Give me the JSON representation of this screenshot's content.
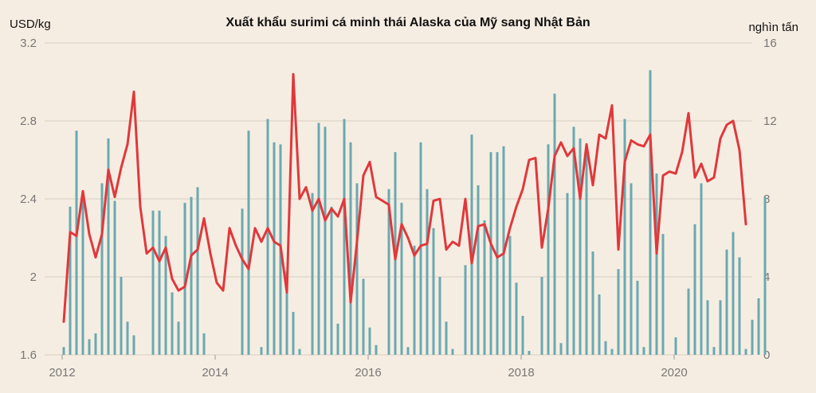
{
  "chart_data": {
    "type": "bar+line",
    "title": "Xuất khẩu surimi cá minh thái Alaska của Mỹ sang Nhật Bản",
    "ylabel_left": "USD/kg",
    "ylabel_right": "nghìn tấn",
    "ylim_left": [
      1.6,
      3.2
    ],
    "ylim_right": [
      0,
      16
    ],
    "yticks_left": [
      "3.2",
      "2.8",
      "2.4",
      "2",
      "1.6"
    ],
    "yticks_right": [
      "16",
      "12",
      "8",
      "4",
      "0"
    ],
    "xticks": [
      "2012",
      "2014",
      "2016",
      "2018",
      "2020"
    ],
    "grid": true,
    "colors": {
      "bars": "#6aa9b0",
      "line": "#e0383c",
      "grid": "#d8cfc3",
      "background": "#f6ede2"
    },
    "x_start": "2012-01",
    "series": [
      {
        "kind": "bar",
        "axis": "right",
        "values": [
          0.4,
          7.6,
          11.5,
          8.1,
          0.8,
          1.1,
          8.8,
          11.1,
          7.9,
          4,
          1.7,
          1,
          0,
          0,
          7.4,
          7.4,
          6.1,
          3.2,
          1.7,
          7.8,
          8.1,
          8.6,
          1.1,
          0,
          0,
          0,
          0,
          0,
          7.5,
          11.5,
          0,
          0.4,
          12.1,
          10.9,
          10.8,
          4.3,
          2.2,
          0.3,
          0,
          8.3,
          11.9,
          11.7,
          7.6,
          1.6,
          12.1,
          10.9,
          8.8,
          3.9,
          1.4,
          0.5,
          0,
          8.5,
          10.4,
          7.8,
          0.4,
          5.6,
          10.9,
          8.5,
          6.5,
          4,
          1.7,
          0.3,
          0,
          4.6,
          11.3,
          8.7,
          6.9,
          10.4,
          10.4,
          10.7,
          6.1,
          3.7,
          2,
          0.2,
          0,
          4,
          10.8,
          13.4,
          0.6,
          8.3,
          11.7,
          11.1,
          10.7,
          5.3,
          3.1,
          0.7,
          0.3,
          4.4,
          12.1,
          8.8,
          3.8,
          0.4,
          14.6,
          9.3,
          6.2,
          0,
          0.9,
          0,
          3.4,
          6.7,
          8.8,
          2.8,
          0.4,
          2.8,
          5.4,
          6.3,
          5,
          0.3,
          1.8,
          2.9,
          8.1
        ]
      },
      {
        "kind": "line",
        "axis": "left",
        "values": [
          1.77,
          2.23,
          2.21,
          2.44,
          2.22,
          2.1,
          2.22,
          2.55,
          2.41,
          2.56,
          2.68,
          2.95,
          2.36,
          2.12,
          2.15,
          2.08,
          2.15,
          1.99,
          1.93,
          1.95,
          2.11,
          2.14,
          2.3,
          2.12,
          1.97,
          1.93,
          2.25,
          2.16,
          2.09,
          2.04,
          2.25,
          2.18,
          2.25,
          2.18,
          2.16,
          1.92,
          3.04,
          2.4,
          2.46,
          2.34,
          2.4,
          2.29,
          2.35,
          2.31,
          2.4,
          1.87,
          2.18,
          2.52,
          2.59,
          2.41,
          2.39,
          2.37,
          2.09,
          2.27,
          2.2,
          2.11,
          2.16,
          2.17,
          2.39,
          2.4,
          2.14,
          2.18,
          2.16,
          2.4,
          2.07,
          2.26,
          2.27,
          2.17,
          2.1,
          2.12,
          2.25,
          2.36,
          2.45,
          2.6,
          2.61,
          2.15,
          2.35,
          2.62,
          2.69,
          2.62,
          2.66,
          2.4,
          2.68,
          2.47,
          2.73,
          2.71,
          2.88,
          2.14,
          2.59,
          2.7,
          2.68,
          2.67,
          2.73,
          2.12,
          2.52,
          2.54,
          2.53,
          2.64,
          2.84,
          2.51,
          2.58,
          2.49,
          2.51,
          2.71,
          2.78,
          2.8,
          2.65,
          2.27
        ]
      }
    ]
  }
}
